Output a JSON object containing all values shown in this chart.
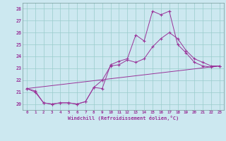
{
  "xlabel": "Windchill (Refroidissement éolien,°C)",
  "bg_color": "#cce8f0",
  "line_color": "#993399",
  "grid_color": "#99cccc",
  "x_labels": [
    "0",
    "1",
    "2",
    "3",
    "4",
    "5",
    "6",
    "7",
    "8",
    "9",
    "10",
    "11",
    "12",
    "13",
    "14",
    "15",
    "16",
    "17",
    "18",
    "19",
    "20",
    "21",
    "22",
    "23"
  ],
  "ylim": [
    19.5,
    28.5
  ],
  "xlim": [
    -0.5,
    23.5
  ],
  "yticks": [
    20,
    21,
    22,
    23,
    24,
    25,
    26,
    27,
    28
  ],
  "series1_x": [
    0,
    1,
    2,
    3,
    4,
    5,
    6,
    7,
    8,
    9,
    10,
    11,
    12,
    13,
    14,
    15,
    16,
    17,
    18,
    19,
    20,
    21,
    22,
    23
  ],
  "series1_y": [
    21.3,
    21.1,
    20.1,
    20.0,
    20.1,
    20.1,
    20.0,
    20.2,
    21.4,
    21.3,
    23.3,
    23.6,
    23.8,
    25.8,
    25.3,
    27.8,
    27.5,
    27.8,
    25.0,
    24.3,
    23.5,
    23.2,
    23.1,
    23.2
  ],
  "series2_x": [
    0,
    1,
    2,
    3,
    4,
    5,
    6,
    7,
    8,
    9,
    10,
    11,
    12,
    13,
    14,
    15,
    16,
    17,
    18,
    19,
    20,
    21,
    22,
    23
  ],
  "series2_y": [
    21.3,
    21.0,
    20.1,
    20.0,
    20.1,
    20.1,
    20.0,
    20.2,
    21.4,
    22.0,
    23.2,
    23.3,
    23.7,
    23.5,
    23.8,
    24.8,
    25.5,
    26.0,
    25.5,
    24.5,
    23.8,
    23.5,
    23.2,
    23.2
  ],
  "series3_x": [
    0,
    23
  ],
  "series3_y": [
    21.3,
    23.2
  ]
}
